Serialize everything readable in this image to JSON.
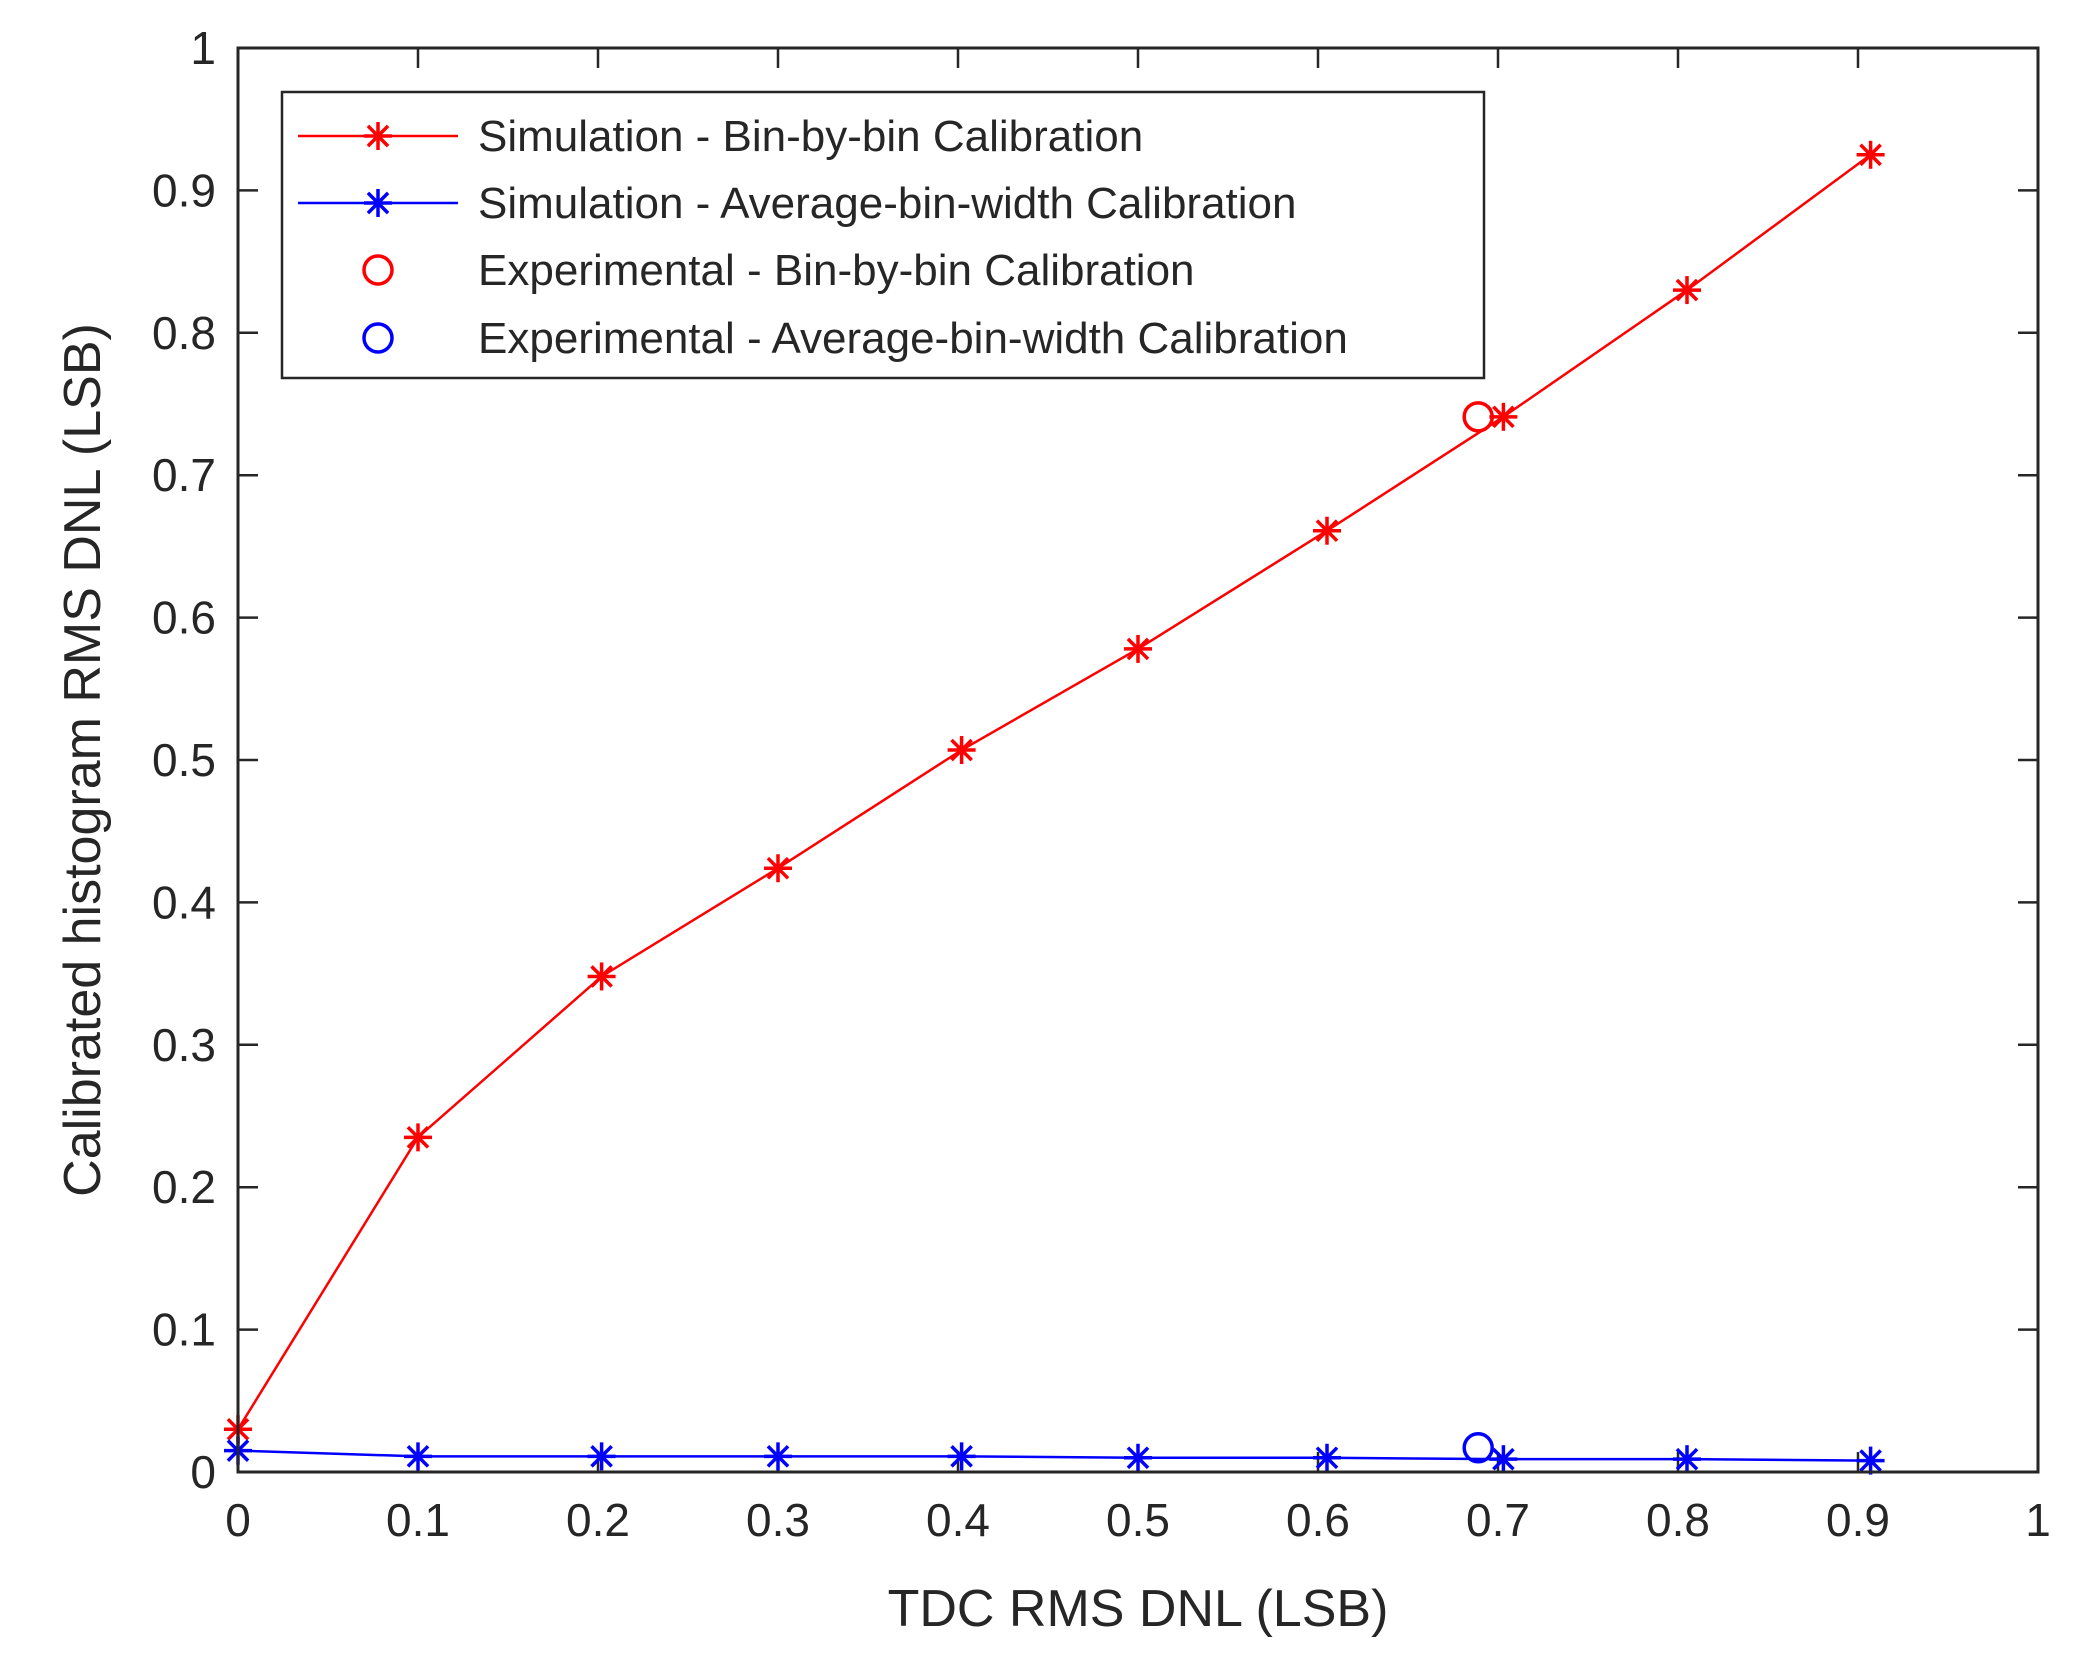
{
  "chart_data": {
    "type": "line",
    "title": "",
    "xlabel": "TDC RMS DNL (LSB)",
    "ylabel": "Calibrated histogram RMS DNL (LSB)",
    "xlim": [
      0,
      1
    ],
    "ylim": [
      0,
      1
    ],
    "xticks": [
      0,
      0.1,
      0.2,
      0.3,
      0.4,
      0.5,
      0.6,
      0.7,
      0.8,
      0.9,
      1
    ],
    "yticks": [
      0,
      0.1,
      0.2,
      0.3,
      0.4,
      0.5,
      0.6,
      0.7,
      0.8,
      0.9,
      1
    ],
    "xtick_labels": [
      "0",
      "0.1",
      "0.2",
      "0.3",
      "0.4",
      "0.5",
      "0.6",
      "0.7",
      "0.8",
      "0.9",
      "1"
    ],
    "ytick_labels": [
      "0",
      "0.1",
      "0.2",
      "0.3",
      "0.4",
      "0.5",
      "0.6",
      "0.7",
      "0.8",
      "0.9",
      "1"
    ],
    "grid": false,
    "legend_position": "top-left",
    "series": [
      {
        "name": "Simulation - Bin-by-bin Calibration",
        "color": "#ff0000",
        "marker": "asterisk",
        "line": true,
        "x": [
          0,
          0.1,
          0.202,
          0.3,
          0.402,
          0.5,
          0.605,
          0.703,
          0.805,
          0.907
        ],
        "y": [
          0.03,
          0.235,
          0.348,
          0.424,
          0.507,
          0.578,
          0.661,
          0.741,
          0.83,
          0.925
        ]
      },
      {
        "name": "Simulation - Average-bin-width Calibration",
        "color": "#0000ff",
        "marker": "asterisk",
        "line": true,
        "x": [
          0,
          0.1,
          0.202,
          0.3,
          0.402,
          0.5,
          0.605,
          0.703,
          0.805,
          0.907
        ],
        "y": [
          0.015,
          0.011,
          0.011,
          0.011,
          0.011,
          0.01,
          0.01,
          0.009,
          0.009,
          0.008
        ]
      },
      {
        "name": "Experimental - Bin-by-bin Calibration",
        "color": "#ff0000",
        "marker": "circle",
        "line": false,
        "x": [
          0.689
        ],
        "y": [
          0.741
        ]
      },
      {
        "name": "Experimental - Average-bin-width Calibration",
        "color": "#0000ff",
        "marker": "circle",
        "line": false,
        "x": [
          0.689
        ],
        "y": [
          0.017
        ]
      }
    ]
  }
}
